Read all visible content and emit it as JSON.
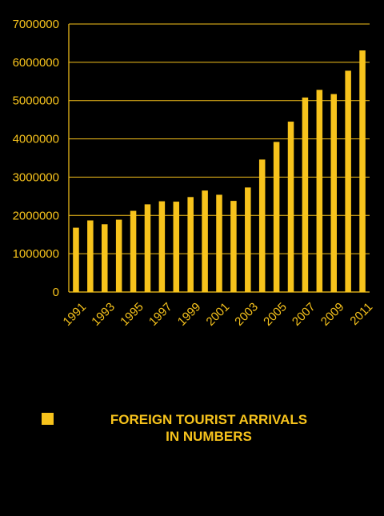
{
  "chart_data": {
    "type": "bar",
    "categories": [
      "1991",
      "1992",
      "1993",
      "1994",
      "1995",
      "1996",
      "1997",
      "1998",
      "1999",
      "2000",
      "2001",
      "2002",
      "2003",
      "2004",
      "2005",
      "2006",
      "2007",
      "2008",
      "2009",
      "2010",
      "2011"
    ],
    "x_tick_labels": [
      "1991",
      "1993",
      "1995",
      "1997",
      "1999",
      "2001",
      "2003",
      "2005",
      "2007",
      "2009",
      "2011"
    ],
    "series": [
      {
        "name": "FOREIGN TOURIST ARRIVALS\nIN NUMBERS",
        "values": [
          1680000,
          1870000,
          1770000,
          1890000,
          2120000,
          2290000,
          2370000,
          2360000,
          2480000,
          2650000,
          2540000,
          2380000,
          2730000,
          3460000,
          3920000,
          4450000,
          5080000,
          5280000,
          5170000,
          5780000,
          6310000
        ]
      }
    ],
    "ylim": [
      0,
      7000000
    ],
    "y_ticks": [
      0,
      1000000,
      2000000,
      3000000,
      4000000,
      5000000,
      6000000,
      7000000
    ],
    "y_tick_labels": [
      "0",
      "1000000",
      "2000000",
      "3000000",
      "4000000",
      "5000000",
      "6000000",
      "7000000"
    ],
    "grid": "horizontal",
    "legend_position": "bottom",
    "title": "",
    "xlabel": "",
    "ylabel": ""
  },
  "colors": {
    "background": "#000000",
    "bar": "#F7C31C",
    "axis": "#F7C31C",
    "grid": "#F7C31C",
    "text": "#F7C31C"
  }
}
